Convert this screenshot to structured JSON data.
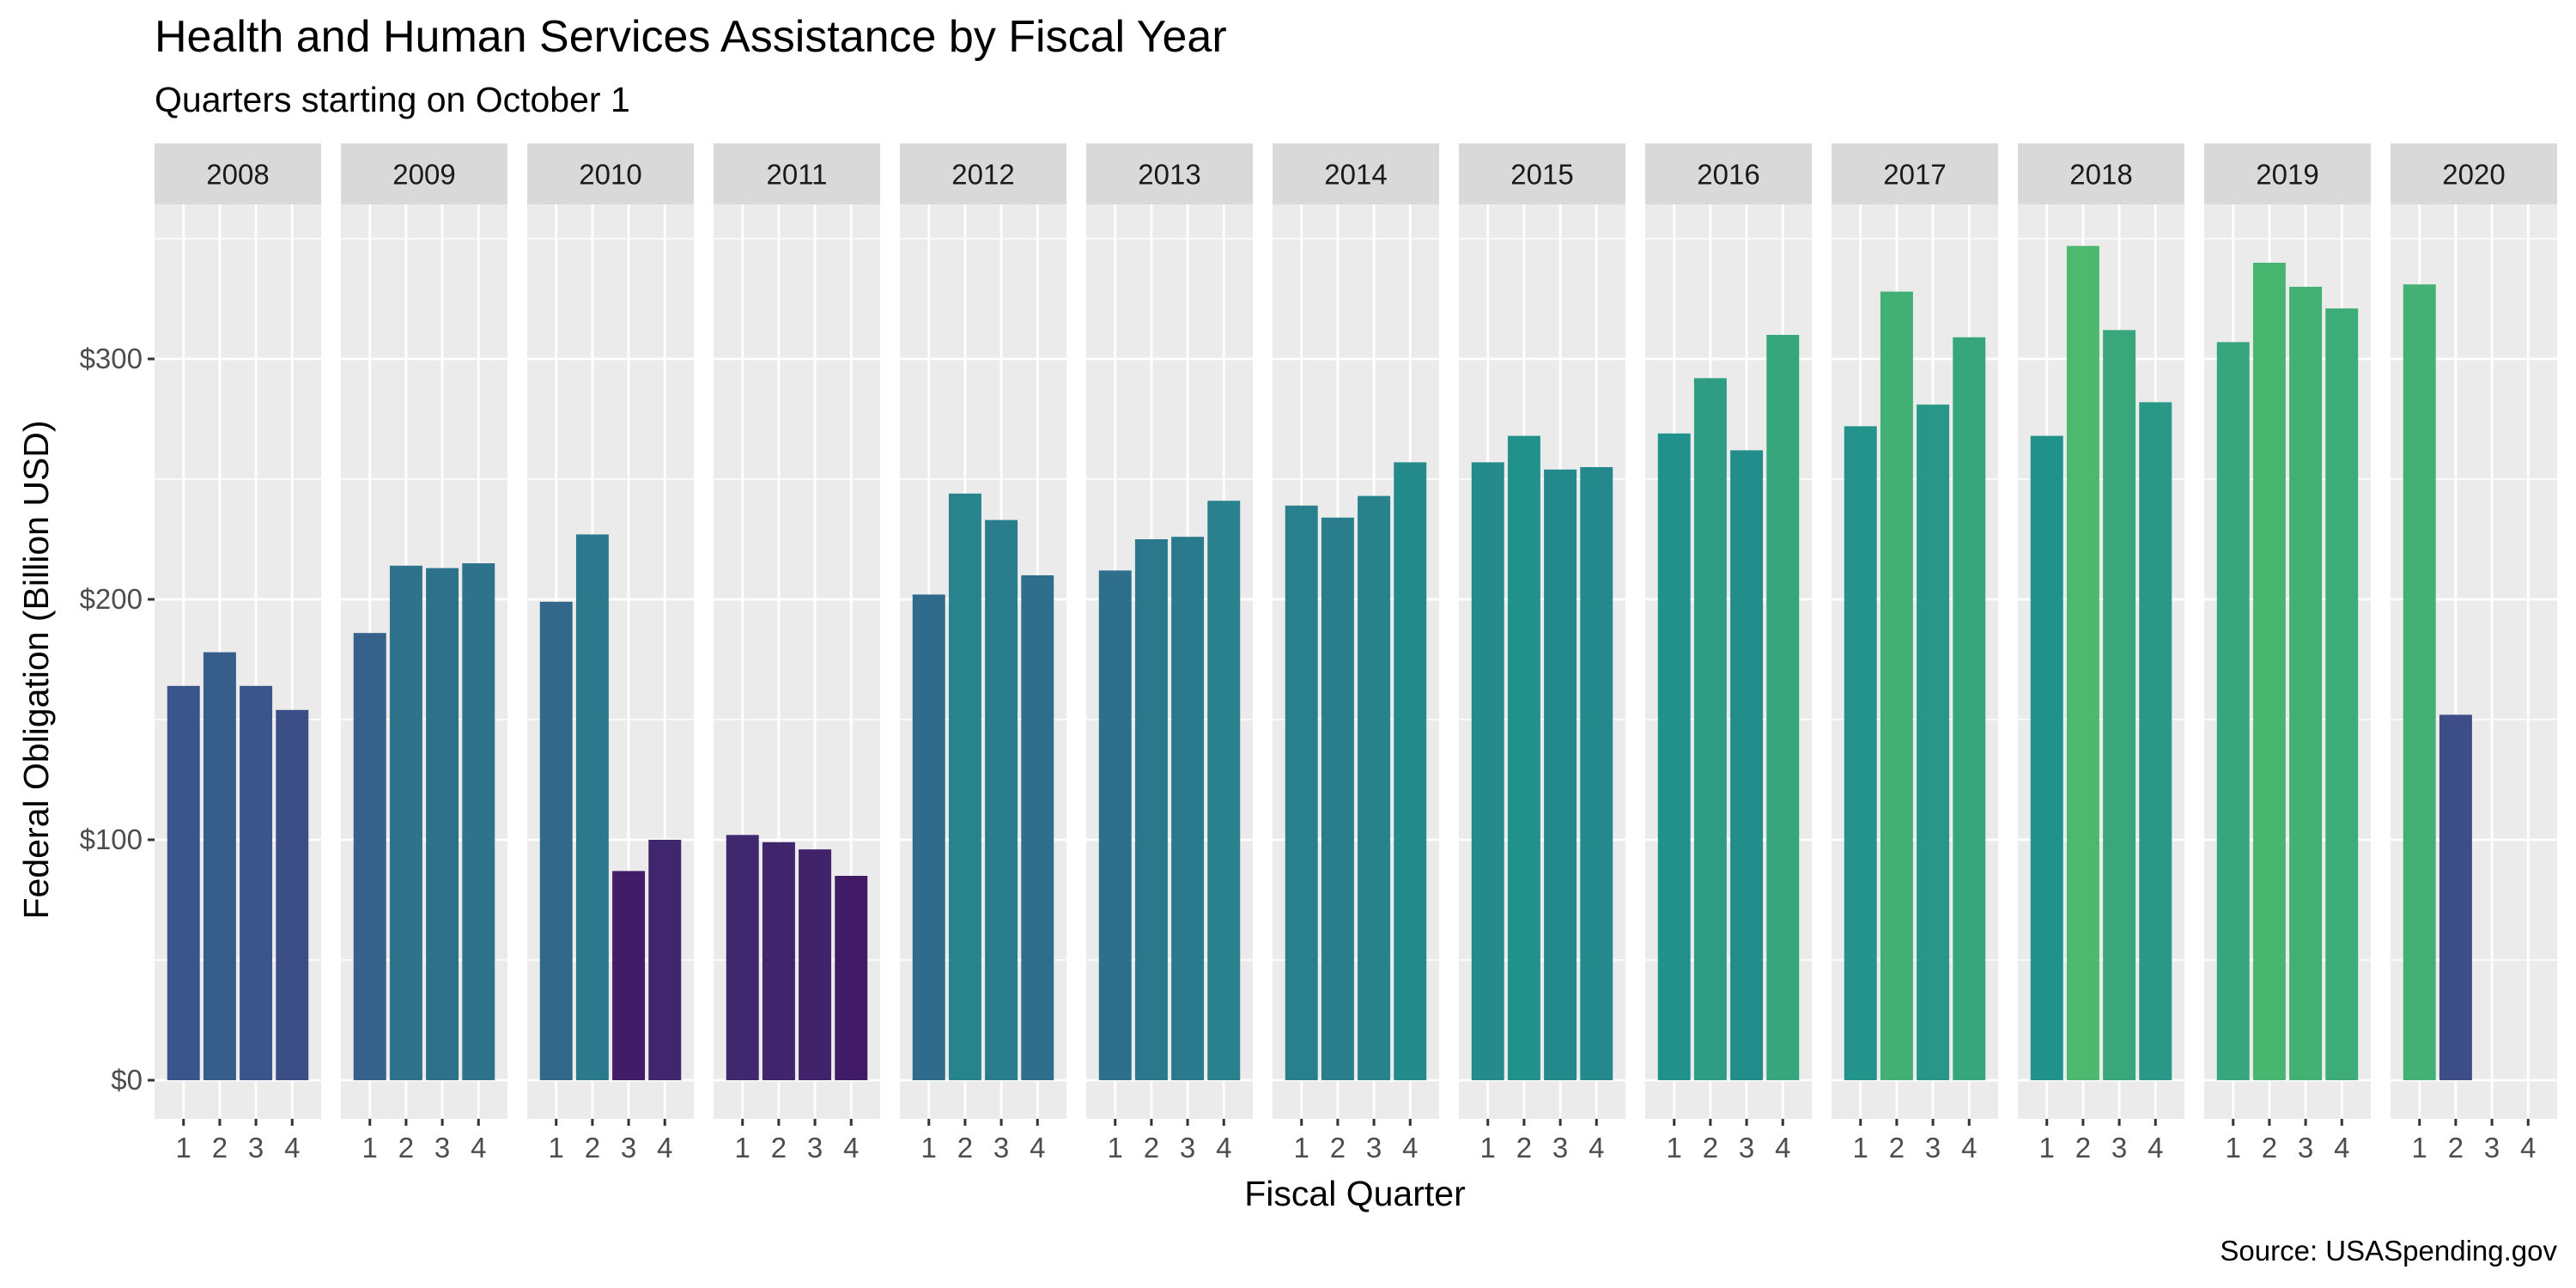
{
  "chart_data": {
    "type": "bar",
    "title": "Health and Human Services Assistance by Fiscal Year",
    "subtitle": "Quarters starting on October 1",
    "xlabel": "Fiscal Quarter",
    "ylabel": "Federal Obligation (Billion USD)",
    "caption": "Source: USASpending.gov",
    "ylim": [
      0,
      350
    ],
    "y_ticks": [
      0,
      100,
      200,
      300
    ],
    "y_tick_labels": [
      "$0",
      "$100",
      "$200",
      "$300"
    ],
    "categories": [
      "1",
      "2",
      "3",
      "4"
    ],
    "grid": true,
    "legend": "none",
    "color_scale": "viridis, bar fill mapped to value",
    "panels": [
      {
        "year": "2008",
        "values": [
          164,
          178,
          164,
          154
        ]
      },
      {
        "year": "2009",
        "values": [
          186,
          214,
          213,
          215
        ]
      },
      {
        "year": "2010",
        "values": [
          199,
          227,
          87,
          100
        ]
      },
      {
        "year": "2011",
        "values": [
          102,
          99,
          96,
          85
        ]
      },
      {
        "year": "2012",
        "values": [
          202,
          244,
          233,
          210
        ]
      },
      {
        "year": "2013",
        "values": [
          212,
          225,
          226,
          241
        ]
      },
      {
        "year": "2014",
        "values": [
          239,
          234,
          243,
          257
        ]
      },
      {
        "year": "2015",
        "values": [
          257,
          268,
          254,
          255
        ]
      },
      {
        "year": "2016",
        "values": [
          269,
          292,
          262,
          310
        ]
      },
      {
        "year": "2017",
        "values": [
          272,
          328,
          281,
          309
        ]
      },
      {
        "year": "2018",
        "values": [
          268,
          347,
          312,
          282
        ]
      },
      {
        "year": "2019",
        "values": [
          307,
          340,
          330,
          321
        ]
      },
      {
        "year": "2020",
        "values": [
          331,
          152,
          null,
          null
        ]
      }
    ]
  }
}
